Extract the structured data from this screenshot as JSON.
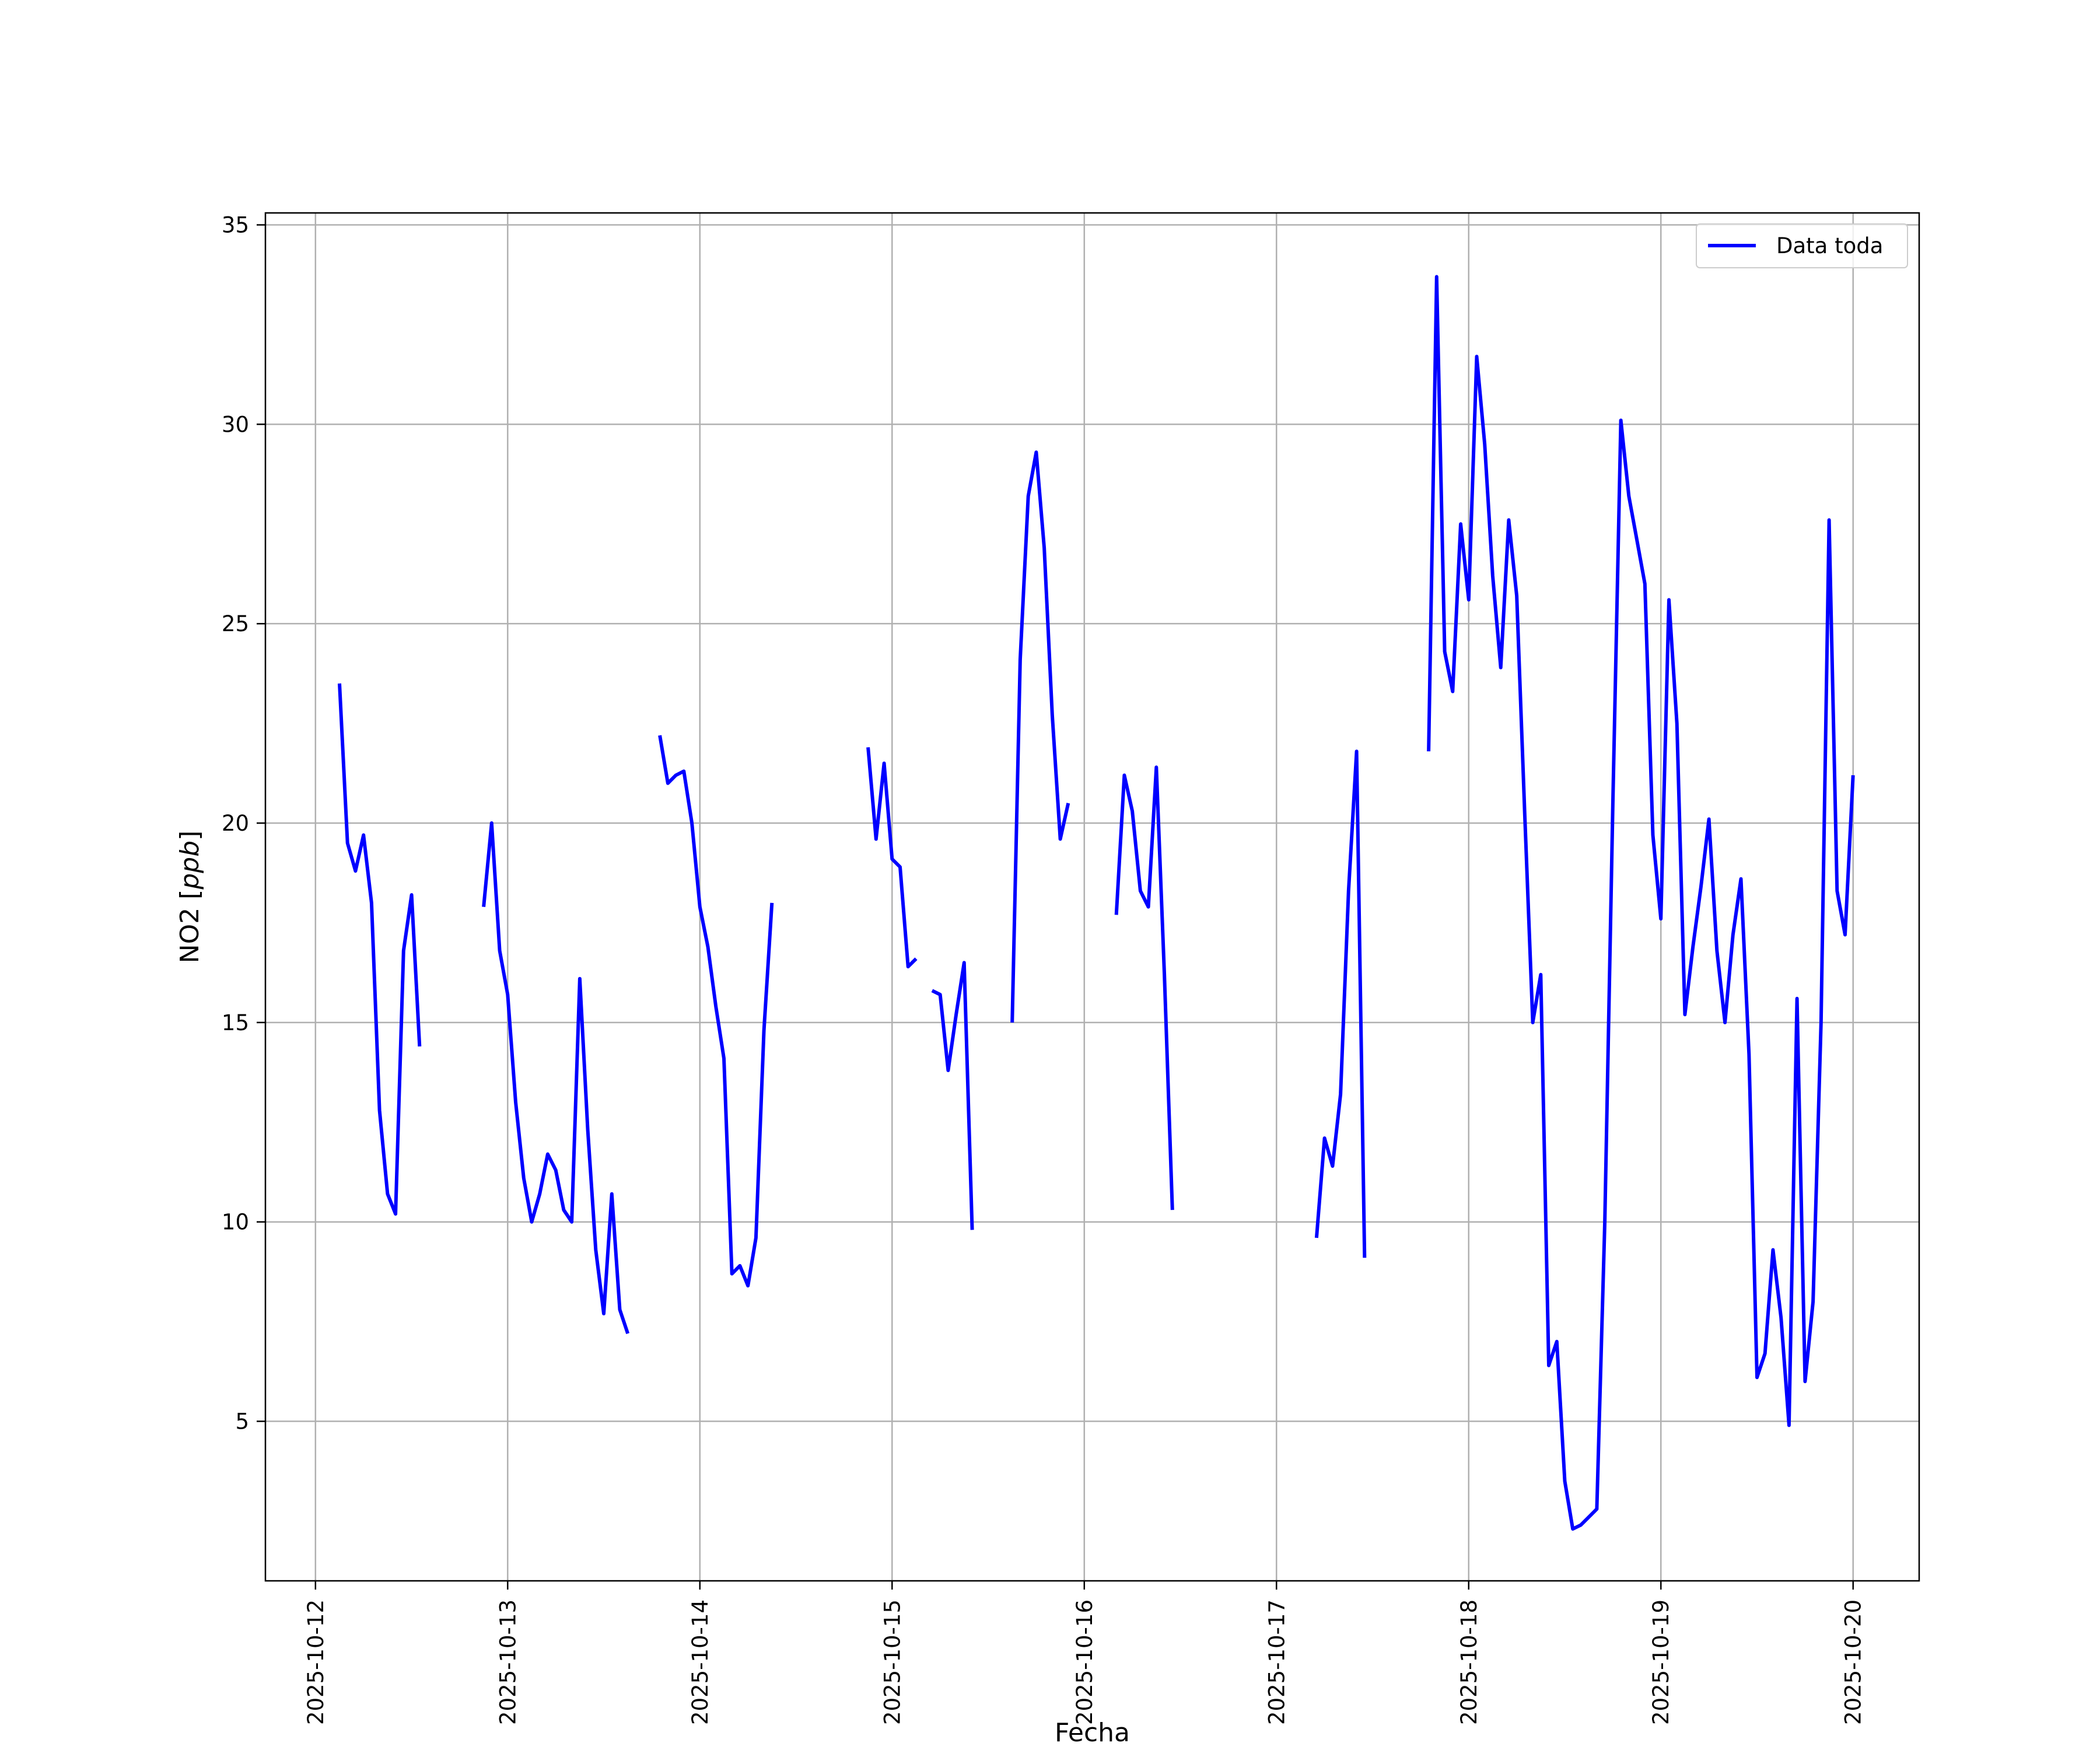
{
  "chart_data": {
    "type": "line",
    "title": "",
    "xlabel": "Fecha",
    "ylabel": "NO2 [ppb]",
    "ylabel_parts": {
      "prefix": "NO2 [",
      "italic": "ppb",
      "suffix": "]"
    },
    "xlim": [
      "2025-10-11T17:45",
      "2025-10-20T08:15"
    ],
    "ylim": [
      1.0,
      35.3
    ],
    "grid": true,
    "legend_position": "top-right",
    "x_ticks": [
      {
        "date": "2025-10-12",
        "label": "2025-10-12"
      },
      {
        "date": "2025-10-13",
        "label": "2025-10-13"
      },
      {
        "date": "2025-10-14",
        "label": "2025-10-14"
      },
      {
        "date": "2025-10-15",
        "label": "2025-10-15"
      },
      {
        "date": "2025-10-16",
        "label": "2025-10-16"
      },
      {
        "date": "2025-10-17",
        "label": "2025-10-17"
      },
      {
        "date": "2025-10-18",
        "label": "2025-10-18"
      },
      {
        "date": "2025-10-19",
        "label": "2025-10-19"
      },
      {
        "date": "2025-10-20",
        "label": "2025-10-20"
      }
    ],
    "y_ticks": [
      {
        "value": 5,
        "label": "5"
      },
      {
        "value": 10,
        "label": "10"
      },
      {
        "value": 15,
        "label": "15"
      },
      {
        "value": 20,
        "label": "20"
      },
      {
        "value": 25,
        "label": "25"
      },
      {
        "value": 30,
        "label": "30"
      },
      {
        "value": 35,
        "label": "35"
      }
    ],
    "series": [
      {
        "name": "Data toda",
        "color": "#0000ff",
        "segments": [
          [
            [
              "2025-10-12T03:00",
              23.5
            ],
            [
              "2025-10-12T04:00",
              19.5
            ],
            [
              "2025-10-12T05:00",
              18.8
            ],
            [
              "2025-10-12T06:00",
              19.7
            ],
            [
              "2025-10-12T07:00",
              18.0
            ],
            [
              "2025-10-12T08:00",
              12.8
            ],
            [
              "2025-10-12T09:00",
              10.7
            ],
            [
              "2025-10-12T10:00",
              10.2
            ],
            [
              "2025-10-12T11:00",
              16.8
            ],
            [
              "2025-10-12T12:00",
              18.2
            ],
            [
              "2025-10-12T13:00",
              14.4
            ]
          ],
          [
            [
              "2025-10-12T21:00",
              17.9
            ],
            [
              "2025-10-12T22:00",
              20.0
            ],
            [
              "2025-10-12T23:00",
              16.8
            ],
            [
              "2025-10-13T00:00",
              15.7
            ],
            [
              "2025-10-13T01:00",
              13.0
            ],
            [
              "2025-10-13T02:00",
              11.1
            ],
            [
              "2025-10-13T03:00",
              10.0
            ],
            [
              "2025-10-13T04:00",
              10.7
            ],
            [
              "2025-10-13T05:00",
              11.7
            ],
            [
              "2025-10-13T06:00",
              11.3
            ],
            [
              "2025-10-13T07:00",
              10.3
            ],
            [
              "2025-10-13T08:00",
              10.0
            ],
            [
              "2025-10-13T09:00",
              16.1
            ],
            [
              "2025-10-13T10:00",
              12.3
            ],
            [
              "2025-10-13T11:00",
              9.3
            ],
            [
              "2025-10-13T12:00",
              7.7
            ],
            [
              "2025-10-13T13:00",
              10.7
            ],
            [
              "2025-10-13T14:00",
              7.8
            ],
            [
              "2025-10-13T15:00",
              7.2
            ]
          ],
          [
            [
              "2025-10-13T19:00",
              22.2
            ],
            [
              "2025-10-13T20:00",
              21.0
            ],
            [
              "2025-10-13T21:00",
              21.2
            ],
            [
              "2025-10-13T22:00",
              21.3
            ],
            [
              "2025-10-13T23:00",
              20.0
            ],
            [
              "2025-10-14T00:00",
              17.9
            ],
            [
              "2025-10-14T01:00",
              16.9
            ],
            [
              "2025-10-14T02:00",
              15.4
            ],
            [
              "2025-10-14T03:00",
              14.1
            ],
            [
              "2025-10-14T04:00",
              8.7
            ],
            [
              "2025-10-14T05:00",
              8.9
            ],
            [
              "2025-10-14T06:00",
              8.4
            ],
            [
              "2025-10-14T07:00",
              9.6
            ],
            [
              "2025-10-14T08:00",
              14.8
            ],
            [
              "2025-10-14T09:00",
              18.0
            ]
          ],
          [
            [
              "2025-10-14T21:00",
              21.9
            ],
            [
              "2025-10-14T22:00",
              19.6
            ],
            [
              "2025-10-14T23:00",
              21.5
            ],
            [
              "2025-10-15T00:00",
              19.1
            ],
            [
              "2025-10-15T01:00",
              18.9
            ],
            [
              "2025-10-15T02:00",
              16.4
            ],
            [
              "2025-10-15T03:00",
              16.6
            ]
          ],
          [
            [
              "2025-10-15T05:00",
              15.8
            ],
            [
              "2025-10-15T06:00",
              15.7
            ],
            [
              "2025-10-15T07:00",
              13.8
            ],
            [
              "2025-10-15T08:00",
              15.2
            ],
            [
              "2025-10-15T09:00",
              16.5
            ],
            [
              "2025-10-15T10:00",
              9.8
            ]
          ],
          [
            [
              "2025-10-15T15:00",
              15.0
            ],
            [
              "2025-10-15T16:00",
              24.1
            ],
            [
              "2025-10-15T17:00",
              28.2
            ],
            [
              "2025-10-15T18:00",
              29.3
            ],
            [
              "2025-10-15T19:00",
              26.9
            ],
            [
              "2025-10-15T20:00",
              22.7
            ],
            [
              "2025-10-15T21:00",
              19.6
            ],
            [
              "2025-10-15T22:00",
              20.5
            ]
          ],
          [
            [
              "2025-10-16T04:00",
              17.7
            ],
            [
              "2025-10-16T05:00",
              21.2
            ],
            [
              "2025-10-16T06:00",
              20.3
            ],
            [
              "2025-10-16T07:00",
              18.3
            ],
            [
              "2025-10-16T08:00",
              17.9
            ],
            [
              "2025-10-16T09:00",
              21.4
            ],
            [
              "2025-10-16T10:00",
              16.2
            ],
            [
              "2025-10-16T11:00",
              10.3
            ]
          ],
          [
            [
              "2025-10-17T05:00",
              9.6
            ],
            [
              "2025-10-17T06:00",
              12.1
            ],
            [
              "2025-10-17T07:00",
              11.4
            ],
            [
              "2025-10-17T08:00",
              13.2
            ],
            [
              "2025-10-17T09:00",
              18.3
            ],
            [
              "2025-10-17T10:00",
              21.8
            ],
            [
              "2025-10-17T11:00",
              9.1
            ]
          ],
          [
            [
              "2025-10-17T19:00",
              21.8
            ],
            [
              "2025-10-17T20:00",
              33.7
            ],
            [
              "2025-10-17T21:00",
              24.3
            ],
            [
              "2025-10-17T22:00",
              23.3
            ],
            [
              "2025-10-17T23:00",
              27.5
            ],
            [
              "2025-10-18T00:00",
              25.6
            ],
            [
              "2025-10-18T01:00",
              31.7
            ],
            [
              "2025-10-18T02:00",
              29.5
            ],
            [
              "2025-10-18T03:00",
              26.2
            ],
            [
              "2025-10-18T04:00",
              23.9
            ],
            [
              "2025-10-18T05:00",
              27.6
            ],
            [
              "2025-10-18T06:00",
              25.7
            ],
            [
              "2025-10-18T07:00",
              20.2
            ],
            [
              "2025-10-18T08:00",
              15.0
            ],
            [
              "2025-10-18T09:00",
              16.2
            ],
            [
              "2025-10-18T10:00",
              6.4
            ],
            [
              "2025-10-18T11:00",
              7.0
            ],
            [
              "2025-10-18T12:00",
              3.5
            ],
            [
              "2025-10-18T13:00",
              2.3
            ],
            [
              "2025-10-18T14:00",
              2.4
            ],
            [
              "2025-10-18T15:00",
              2.6
            ],
            [
              "2025-10-18T16:00",
              2.8
            ],
            [
              "2025-10-18T17:00",
              10.0
            ],
            [
              "2025-10-18T18:00",
              20.5
            ],
            [
              "2025-10-18T19:00",
              30.1
            ],
            [
              "2025-10-18T20:00",
              28.2
            ],
            [
              "2025-10-18T21:00",
              27.1
            ],
            [
              "2025-10-18T22:00",
              26.0
            ],
            [
              "2025-10-18T23:00",
              19.7
            ],
            [
              "2025-10-19T00:00",
              17.6
            ],
            [
              "2025-10-19T01:00",
              25.6
            ],
            [
              "2025-10-19T02:00",
              22.5
            ],
            [
              "2025-10-19T03:00",
              15.2
            ],
            [
              "2025-10-19T04:00",
              16.9
            ],
            [
              "2025-10-19T05:00",
              18.4
            ],
            [
              "2025-10-19T06:00",
              20.1
            ],
            [
              "2025-10-19T07:00",
              16.8
            ],
            [
              "2025-10-19T08:00",
              15.0
            ],
            [
              "2025-10-19T09:00",
              17.2
            ],
            [
              "2025-10-19T10:00",
              18.6
            ],
            [
              "2025-10-19T11:00",
              14.2
            ],
            [
              "2025-10-19T12:00",
              6.1
            ],
            [
              "2025-10-19T13:00",
              6.7
            ],
            [
              "2025-10-19T14:00",
              9.3
            ],
            [
              "2025-10-19T15:00",
              7.6
            ],
            [
              "2025-10-19T16:00",
              4.9
            ],
            [
              "2025-10-19T17:00",
              15.6
            ],
            [
              "2025-10-19T18:00",
              6.0
            ],
            [
              "2025-10-19T19:00",
              8.0
            ],
            [
              "2025-10-19T20:00",
              15.0
            ],
            [
              "2025-10-19T21:00",
              27.6
            ],
            [
              "2025-10-19T22:00",
              18.3
            ],
            [
              "2025-10-19T23:00",
              17.2
            ],
            [
              "2025-10-20T00:00",
              21.2
            ]
          ]
        ]
      }
    ]
  }
}
